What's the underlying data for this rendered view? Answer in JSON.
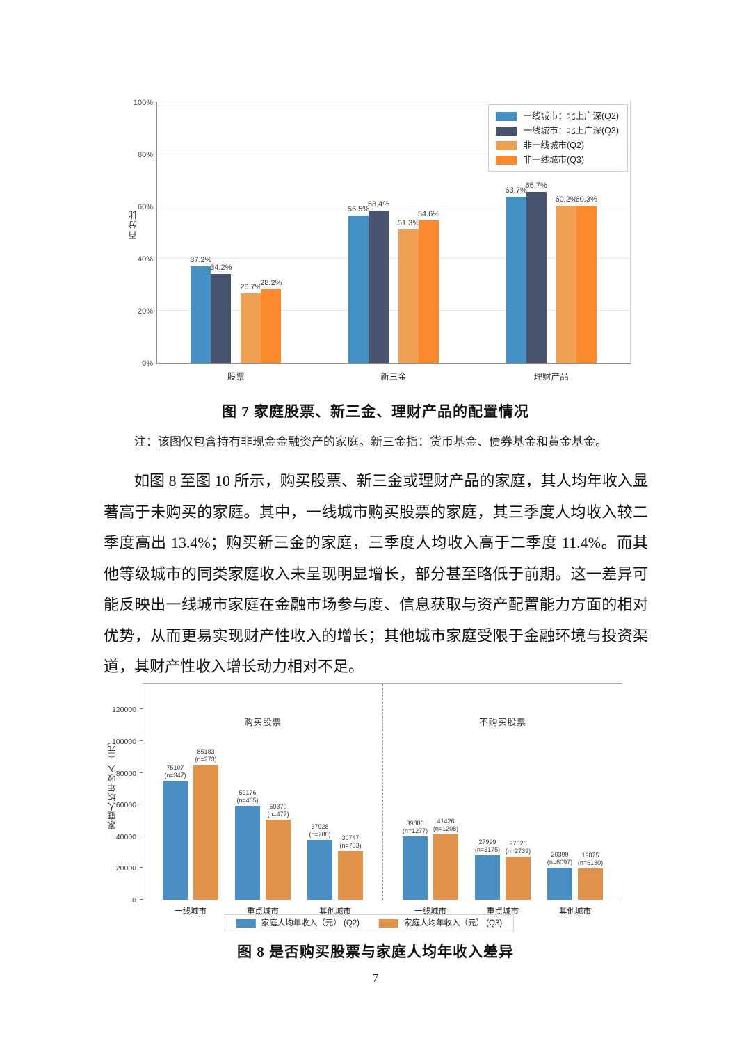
{
  "figure7": {
    "caption": "图 7 家庭股票、新三金、理财产品的配置情况",
    "note": "注：该图仅包含持有非现金金融资产的家庭。新三金指：货币基金、债券基金和黄金基金。"
  },
  "body_paragraph": "如图 8 至图 10 所示，购买股票、新三金或理财产品的家庭，其人均年收入显著高于未购买的家庭。其中，一线城市购买股票的家庭，其三季度人均收入较二季度高出 13.4%；购买新三金的家庭，三季度人均收入高于二季度 11.4%。而其他等级城市的同类家庭收入未呈现明显增长，部分甚至略低于前期。这一差异可能反映出一线城市家庭在金融市场参与度、信息获取与资产配置能力方面的相对优势，从而更易实现财产性收入的增长；其他城市家庭受限于金融环境与投资渠道，其财产性收入增长动力相对不足。",
  "figure8": {
    "caption": "图 8 是否购买股票与家庭人均年收入差异"
  },
  "page_number": "7",
  "chart_data": [
    {
      "type": "bar",
      "title": "家庭股票、新三金、理财产品的配置情况",
      "ylabel": "百分比",
      "ylim": [
        0,
        100
      ],
      "yticks": [
        0,
        20,
        40,
        60,
        80,
        100
      ],
      "ytick_suffix": "%",
      "grid": true,
      "legend_position": "top-right",
      "categories": [
        "股票",
        "新三金",
        "理财产品"
      ],
      "series": [
        {
          "name": "一线城市：北上广深(Q2)",
          "color": "#4490c4",
          "values": [
            37.2,
            56.5,
            63.7
          ]
        },
        {
          "name": "一线城市：北上广深(Q3)",
          "color": "#47536f",
          "values": [
            34.2,
            58.4,
            65.7
          ]
        },
        {
          "name": "非一线城市(Q2)",
          "color": "#f0a052",
          "values": [
            26.7,
            51.3,
            60.2
          ]
        },
        {
          "name": "非一线城市(Q3)",
          "color": "#fc8a2d",
          "values": [
            28.2,
            54.6,
            60.3
          ]
        }
      ]
    },
    {
      "type": "bar",
      "title": "是否购买股票与家庭人均年收入差异",
      "ylabel": "家庭人均年收入（元）",
      "ylim": [
        0,
        136000
      ],
      "yticks": [
        0,
        20000,
        40000,
        60000,
        80000,
        100000,
        120000
      ],
      "grid": false,
      "legend_position": "bottom-center",
      "categories": [
        "一线城市",
        "重点城市",
        "其他城市"
      ],
      "panels": [
        {
          "title": "购买股票",
          "series": [
            {
              "name": "家庭人均年收入（元） (Q2)",
              "color": "#4a8fc3",
              "values": [
                75107,
                59176,
                37928
              ],
              "n": [
                347,
                465,
                780
              ]
            },
            {
              "name": "家庭人均年收入（元） (Q3)",
              "color": "#e2924a",
              "values": [
                85183,
                50370,
                30747
              ],
              "n": [
                273,
                477,
                753
              ]
            }
          ]
        },
        {
          "title": "不购买股票",
          "series": [
            {
              "name": "家庭人均年收入（元） (Q2)",
              "color": "#4a8fc3",
              "values": [
                39880,
                27999,
                20399
              ],
              "n": [
                1277,
                3175,
                6097
              ]
            },
            {
              "name": "家庭人均年收入（元） (Q3)",
              "color": "#e2924a",
              "values": [
                41426,
                27026,
                19875
              ],
              "n": [
                1208,
                2739,
                6130
              ]
            }
          ]
        }
      ],
      "legend": [
        {
          "label": "家庭人均年收入（元） (Q2)",
          "color": "#4a8fc3"
        },
        {
          "label": "家庭人均年收入（元） (Q3)",
          "color": "#e2924a"
        }
      ]
    }
  ]
}
